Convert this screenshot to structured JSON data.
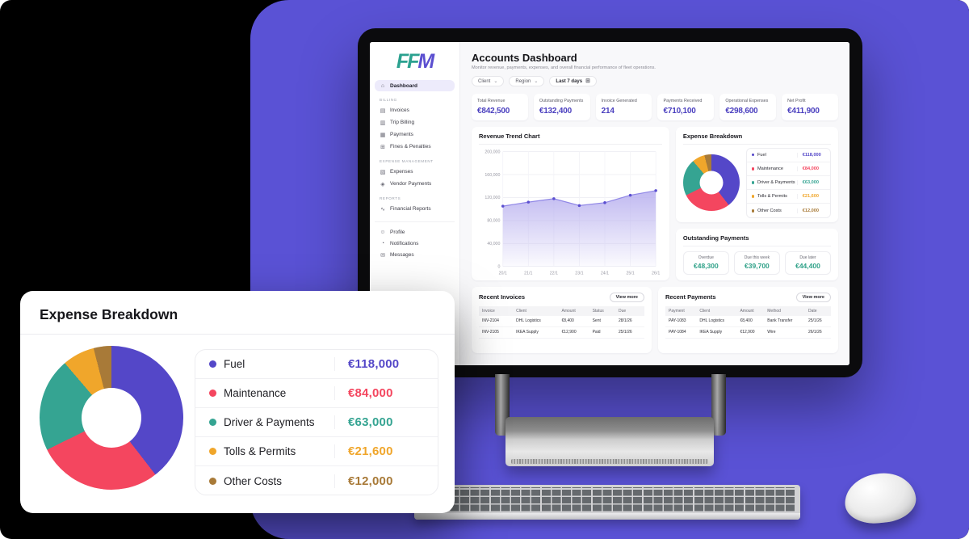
{
  "colors": {
    "background_purple": "#5a52d5",
    "accent_indigo": "#4a3fbf",
    "positive_green": "#2fa188",
    "logo_teal": "#2ba18f",
    "logo_purple": "#5b4fd0",
    "line_stroke": "#9087e6",
    "line_dot": "#5b4fd0",
    "area_top": "#b9b1ef"
  },
  "logo": {
    "part1": "FF",
    "part2": "M"
  },
  "sidebar": {
    "dashboard": {
      "icon": "⌂",
      "label": "Dashboard"
    },
    "sections": [
      {
        "title": "BILLING",
        "items": [
          {
            "icon": "▤",
            "label": "Invoices"
          },
          {
            "icon": "▥",
            "label": "Trip Billing"
          },
          {
            "icon": "▦",
            "label": "Payments"
          },
          {
            "icon": "⊞",
            "label": "Fines & Penalties"
          }
        ]
      },
      {
        "title": "EXPENSE MANAGEMENT",
        "items": [
          {
            "icon": "▧",
            "label": "Expenses"
          },
          {
            "icon": "◈",
            "label": "Vendor Payments"
          }
        ]
      },
      {
        "title": "REPORTS",
        "items": [
          {
            "icon": "∿",
            "label": "Financial Reports"
          }
        ]
      }
    ],
    "footer": [
      {
        "icon": "☺",
        "label": "Profile"
      },
      {
        "icon": "◔",
        "label": "Notifications"
      },
      {
        "icon": "✉",
        "label": "Messages"
      }
    ]
  },
  "header": {
    "title": "Accounts Dashboard",
    "subtitle": "Monitor revenue, payments, expenses, and overall financial performance of fleet operations.",
    "filters": {
      "client": "Client",
      "region": "Region",
      "date_range": "Last 7 days",
      "chevron": "⌄",
      "calendar_icon": "⊞"
    }
  },
  "kpis": [
    {
      "label": "Total Revenue",
      "value": "€842,500"
    },
    {
      "label": "Outstanding Payments",
      "value": "€132,400"
    },
    {
      "label": "Invoice Generated",
      "value": "214"
    },
    {
      "label": "Payments Received",
      "value": "€710,100"
    },
    {
      "label": "Operational Expenses",
      "value": "€298,600"
    },
    {
      "label": "Net Profit",
      "value": "€411,900"
    }
  ],
  "chart_data": [
    {
      "type": "area",
      "title": "Revenue Trend Chart",
      "x": [
        "20/1",
        "21/1",
        "22/1",
        "23/1",
        "24/1",
        "25/1",
        "26/1"
      ],
      "values": [
        105000,
        112000,
        118000,
        106000,
        111000,
        124000,
        132000
      ],
      "xlabel": "",
      "ylabel": "",
      "ylim": [
        0,
        200000
      ],
      "yticks": [
        0,
        40000,
        80000,
        120000,
        160000,
        200000
      ],
      "ytick_labels": [
        "0",
        "40,000",
        "80,000",
        "120,000",
        "160,000",
        "200,000"
      ],
      "grid": true,
      "legend": false
    },
    {
      "type": "pie",
      "title": "Expense Breakdown",
      "donut": true,
      "labels": [
        "Fuel",
        "Maintenance",
        "Driver & Payments",
        "Tolls & Permits",
        "Other Costs"
      ],
      "values": [
        118000,
        84000,
        63000,
        21600,
        12000
      ],
      "display_values": [
        "€118,000",
        "€84,000",
        "€63,000",
        "€21,600",
        "€12,000"
      ],
      "colors": [
        "#5447c8",
        "#f4465f",
        "#35a492",
        "#f0a62b",
        "#a87a38"
      ],
      "legend_position": "right"
    }
  ],
  "expense": {
    "title": "Expense Breakdown",
    "items": [
      {
        "label": "Fuel",
        "value": "€118,000",
        "color": "#5447c8"
      },
      {
        "label": "Maintenance",
        "value": "€84,000",
        "color": "#f4465f"
      },
      {
        "label": "Driver & Payments",
        "value": "€63,000",
        "color": "#35a492"
      },
      {
        "label": "Tolls & Permits",
        "value": "€21,600",
        "color": "#f0a62b"
      },
      {
        "label": "Other Costs",
        "value": "€12,000",
        "color": "#a87a38"
      }
    ]
  },
  "outstanding": {
    "title": "Outstanding Payments",
    "cards": [
      {
        "label": "Overdue",
        "value": "€48,300"
      },
      {
        "label": "Due this week",
        "value": "€39,700"
      },
      {
        "label": "Due later",
        "value": "€44,400"
      }
    ]
  },
  "recent_invoices": {
    "title": "Recent Invoices",
    "view_more": "View more",
    "headers": [
      "Invoice",
      "Client",
      "Amount",
      "Status",
      "Due"
    ],
    "rows": [
      [
        "INV-2104",
        "DHL Logistics",
        "€8,400",
        "Sent",
        "28/1/26"
      ],
      [
        "INV-2105",
        "IKEA Supply",
        "€12,900",
        "Paid",
        "25/1/26"
      ]
    ]
  },
  "recent_payments": {
    "title": "Recent Payments",
    "view_more": "View more",
    "headers": [
      "Payment",
      "Client",
      "Amount",
      "Method",
      "Date"
    ],
    "rows": [
      [
        "PAY-1083",
        "DHL Logistics",
        "€8,400",
        "Bank Transfer",
        "25/1/26"
      ],
      [
        "PAY-1084",
        "IKEA Supply",
        "€12,900",
        "Wire",
        "26/1/26"
      ]
    ]
  },
  "overlay": {
    "title": "Expense Breakdown"
  }
}
